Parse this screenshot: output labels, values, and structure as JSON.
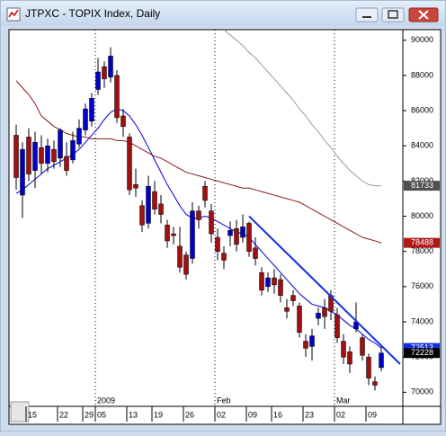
{
  "chart_data": {
    "type": "candlestick",
    "title": "JTPXC - TOPIX Index, Daily",
    "categories": [
      null,
      null,
      "15",
      null,
      null,
      null,
      null,
      "22",
      null,
      null,
      null,
      "29",
      null,
      "05",
      null,
      null,
      null,
      null,
      "13",
      null,
      null,
      null,
      "19",
      null,
      null,
      null,
      null,
      "26",
      null,
      null,
      null,
      null,
      "02",
      null,
      null,
      null,
      null,
      "09",
      null,
      null,
      null,
      "16",
      null,
      null,
      null,
      null,
      "23",
      null,
      null,
      null,
      null,
      "02",
      null,
      null,
      null,
      null,
      "09",
      null,
      null
    ],
    "period_labels": [
      null,
      null,
      null,
      null,
      null,
      null,
      null,
      null,
      null,
      null,
      null,
      null,
      null,
      "2009",
      null,
      null,
      null,
      null,
      null,
      null,
      null,
      null,
      null,
      null,
      null,
      null,
      null,
      null,
      null,
      null,
      null,
      null,
      "Feb",
      null,
      null,
      null,
      null,
      null,
      null,
      null,
      null,
      null,
      null,
      null,
      null,
      null,
      null,
      null,
      null,
      null,
      null,
      "Mar",
      null,
      null,
      null,
      null,
      null,
      null,
      null
    ],
    "open": [
      84600,
      81200,
      84500,
      82600,
      83900,
      83000,
      83800,
      83300,
      83400,
      83200,
      84100,
      84900,
      85400,
      87200,
      88500,
      87900,
      88000,
      85700,
      84500,
      81800,
      80600,
      79600,
      81400,
      80700,
      79500,
      79000,
      78300,
      77800,
      77600,
      80300,
      81700,
      80300,
      78800,
      77900,
      78900,
      79300,
      78800,
      79600,
      78200,
      76800,
      76000,
      76500,
      76400,
      74800,
      75500,
      74900,
      72900,
      72600,
      74200,
      74800,
      75500,
      74400,
      72900,
      72300,
      73600,
      73100,
      72000,
      70600,
      71400
    ],
    "high": [
      85200,
      84200,
      85000,
      84800,
      84600,
      84400,
      84300,
      85000,
      84200,
      84800,
      85500,
      86400,
      87000,
      89000,
      88800,
      89600,
      88300,
      86100,
      84700,
      82700,
      80900,
      82300,
      82000,
      81200,
      79800,
      79400,
      79400,
      78000,
      80800,
      80600,
      82000,
      80700,
      79300,
      78300,
      79700,
      79800,
      80100,
      79700,
      78800,
      77100,
      76800,
      77000,
      76700,
      75300,
      75800,
      75100,
      73300,
      73600,
      74800,
      75300,
      75800,
      74800,
      73300,
      72600,
      75100,
      73300,
      72200,
      70900,
      72700
    ],
    "low": [
      81500,
      79900,
      82000,
      81600,
      82400,
      82500,
      82700,
      82800,
      82300,
      83000,
      83900,
      84600,
      85100,
      86900,
      87300,
      87600,
      85300,
      84500,
      81200,
      81100,
      79100,
      79300,
      80100,
      79600,
      78200,
      78400,
      76800,
      76400,
      77300,
      79300,
      80500,
      78500,
      77500,
      77000,
      78300,
      78000,
      78500,
      77700,
      77200,
      75500,
      75700,
      75600,
      75100,
      74200,
      74900,
      73100,
      72000,
      71800,
      73800,
      73600,
      74100,
      72800,
      71600,
      71100,
      73400,
      71800,
      70400,
      70100,
      71200
    ],
    "close": [
      82200,
      83800,
      82400,
      84200,
      83000,
      84000,
      83100,
      84900,
      82600,
      84300,
      85000,
      86100,
      86700,
      88200,
      87800,
      89100,
      85600,
      85100,
      81500,
      81600,
      79500,
      81700,
      80400,
      80100,
      78600,
      78900,
      77100,
      76700,
      80300,
      79800,
      80900,
      79000,
      78000,
      77500,
      79200,
      78400,
      79400,
      78000,
      77600,
      75800,
      76500,
      76100,
      75500,
      74600,
      75200,
      73400,
      72500,
      73200,
      74500,
      74300,
      74600,
      73100,
      72000,
      71600,
      74000,
      72100,
      70800,
      70400,
      72228
    ],
    "up_color": "#0000c8",
    "down_color": "#a01010",
    "moving_averages": [
      {
        "color": "#0000e0",
        "values": [
          81300,
          81500,
          81800,
          82100,
          82400,
          82700,
          82900,
          83100,
          83300,
          83500,
          83800,
          84200,
          84600,
          85000,
          85500,
          85900,
          86100,
          86000,
          85700,
          85200,
          84600,
          83900,
          83200,
          82500,
          81800,
          81200,
          80600,
          80100,
          79900,
          79900,
          80000,
          79900,
          79700,
          79500,
          79300,
          79100,
          79000,
          78800,
          78400,
          78000,
          77600,
          77200,
          76800,
          76400,
          76000,
          75600,
          75300,
          75000,
          74900,
          74800,
          74600,
          74400,
          74100,
          73800,
          73600,
          73300,
          73000,
          72800,
          72513
        ]
      },
      {
        "color": "#8b1a1a",
        "values": [
          87700,
          87300,
          86900,
          86400,
          85700,
          85400,
          85100,
          84900,
          84700,
          84600,
          84500,
          84500,
          84400,
          84400,
          84400,
          84400,
          84300,
          84300,
          84200,
          84000,
          83800,
          83600,
          83400,
          83300,
          83100,
          82900,
          82700,
          82500,
          82400,
          82300,
          82200,
          82100,
          82000,
          81900,
          81800,
          81700,
          81600,
          81600,
          81500,
          81400,
          81300,
          81200,
          81100,
          81000,
          80900,
          80800,
          80600,
          80400,
          80200,
          80000,
          79800,
          79600,
          79400,
          79200,
          79000,
          78800,
          78700,
          78600,
          78488
        ]
      },
      {
        "color": "#999999",
        "values": [
          null,
          null,
          null,
          null,
          null,
          null,
          null,
          null,
          null,
          null,
          null,
          null,
          null,
          null,
          null,
          null,
          null,
          null,
          null,
          null,
          null,
          null,
          null,
          null,
          null,
          null,
          null,
          null,
          null,
          null,
          null,
          null,
          null,
          90600,
          90300,
          90000,
          89700,
          89300,
          89000,
          88600,
          88200,
          87800,
          87400,
          87000,
          86600,
          86100,
          85700,
          85200,
          84800,
          84300,
          83900,
          83400,
          83000,
          82600,
          82300,
          82000,
          81800,
          81733,
          81733
        ]
      }
    ],
    "trendline": {
      "color": "#1030e0",
      "x": [
        37,
        61
      ],
      "values": [
        80000,
        71600
      ]
    },
    "price_tags": [
      {
        "value": 81733,
        "color": "#505050"
      },
      {
        "value": 78488,
        "color": "#b01818"
      },
      {
        "value": 72513,
        "color": "#1030e0"
      },
      {
        "value": 72228,
        "color": "#000000"
      }
    ],
    "ylim": [
      69200,
      90600
    ],
    "yticks": [
      70000,
      72000,
      74000,
      76000,
      78000,
      80000,
      82000,
      84000,
      86000,
      88000,
      90000
    ]
  }
}
